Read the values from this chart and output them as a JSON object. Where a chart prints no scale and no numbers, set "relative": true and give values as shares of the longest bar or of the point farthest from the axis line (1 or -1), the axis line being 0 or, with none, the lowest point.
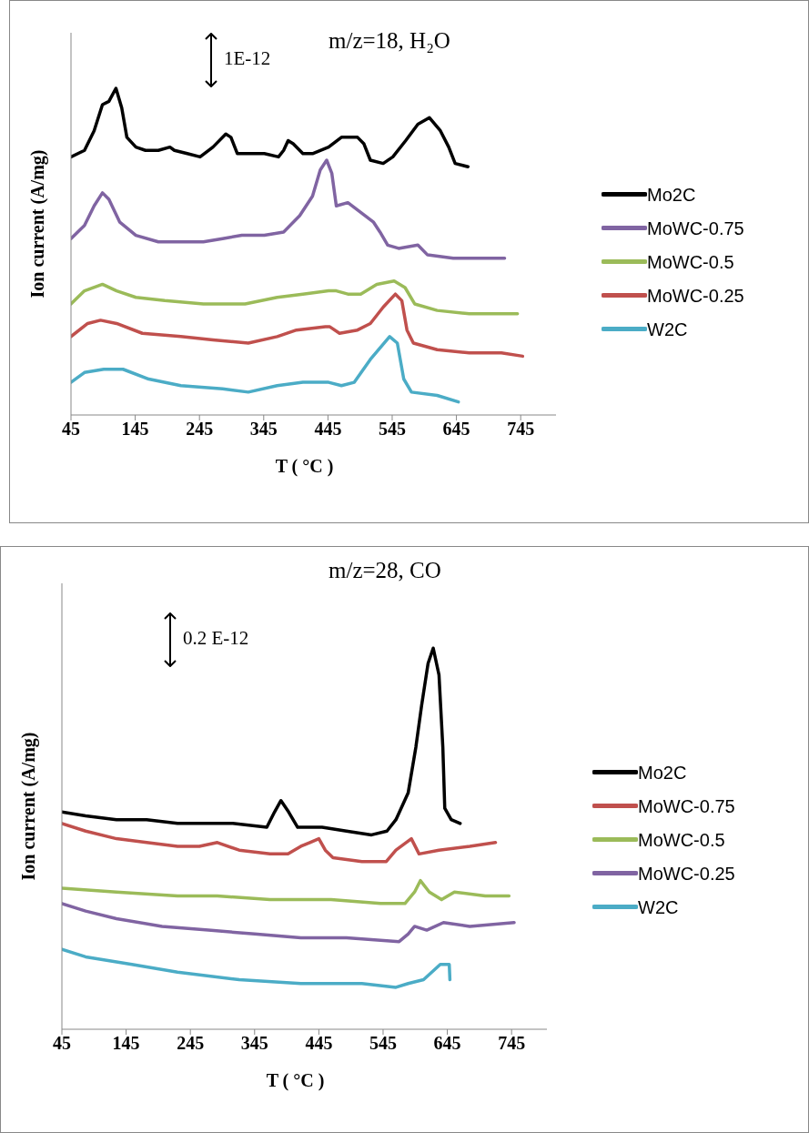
{
  "chart_data": [
    {
      "type": "line",
      "title": "m/z=18, H₂O",
      "xlabel": "T ( °C )",
      "ylabel": "Ion current (A/mg)",
      "relative": true,
      "tick_labels": "x",
      "legend": "right",
      "annotations": [
        "1E-12"
      ],
      "xlim": [
        45,
        800
      ],
      "xticks": [
        45,
        145,
        245,
        345,
        445,
        545,
        645,
        745
      ],
      "series": [
        {
          "name": "Mo2C",
          "color": "#000000",
          "x": [
            45,
            66,
            81,
            94,
            104,
            115,
            124,
            132,
            146,
            161,
            181,
            199,
            206,
            226,
            246,
            266,
            286,
            294,
            304,
            326,
            346,
            368,
            376,
            383,
            391,
            406,
            421,
            446,
            466,
            491,
            501,
            511,
            531,
            546,
            566,
            585,
            603,
            620,
            633,
            643,
            663
          ],
          "values": [
            0.79,
            0.81,
            0.87,
            0.95,
            0.96,
            1.0,
            0.94,
            0.85,
            0.82,
            0.81,
            0.81,
            0.82,
            0.81,
            0.8,
            0.79,
            0.82,
            0.86,
            0.85,
            0.8,
            0.8,
            0.8,
            0.79,
            0.81,
            0.84,
            0.83,
            0.8,
            0.8,
            0.82,
            0.85,
            0.85,
            0.83,
            0.78,
            0.77,
            0.79,
            0.84,
            0.89,
            0.91,
            0.87,
            0.82,
            0.77,
            0.76
          ]
        },
        {
          "name": "MoWC-0.75",
          "color": "#8064a2",
          "x": [
            45,
            66,
            81,
            94,
            104,
            121,
            146,
            181,
            216,
            251,
            281,
            311,
            346,
            376,
            401,
            421,
            433,
            443,
            451,
            458,
            476,
            496,
            516,
            526,
            538,
            555,
            585,
            600,
            640,
            720
          ],
          "values": [
            0.54,
            0.58,
            0.64,
            0.68,
            0.66,
            0.59,
            0.55,
            0.53,
            0.53,
            0.53,
            0.54,
            0.55,
            0.55,
            0.56,
            0.61,
            0.67,
            0.75,
            0.78,
            0.74,
            0.64,
            0.65,
            0.62,
            0.59,
            0.56,
            0.52,
            0.51,
            0.52,
            0.49,
            0.48,
            0.48
          ]
        },
        {
          "name": "MoWC-0.5",
          "color": "#9bbb59",
          "x": [
            45,
            66,
            94,
            116,
            146,
            191,
            251,
            316,
            366,
            406,
            446,
            458,
            476,
            496,
            521,
            548,
            565,
            580,
            615,
            665,
            740
          ],
          "values": [
            0.34,
            0.38,
            0.4,
            0.38,
            0.36,
            0.35,
            0.34,
            0.34,
            0.36,
            0.37,
            0.38,
            0.38,
            0.37,
            0.37,
            0.4,
            0.41,
            0.39,
            0.34,
            0.32,
            0.31,
            0.31
          ]
        },
        {
          "name": "MoWC-0.25",
          "color": "#c0504d",
          "x": [
            45,
            71,
            91,
            116,
            156,
            216,
            266,
            321,
            366,
            396,
            441,
            448,
            463,
            491,
            511,
            531,
            550,
            560,
            568,
            578,
            615,
            665,
            715,
            748
          ],
          "values": [
            0.24,
            0.28,
            0.29,
            0.28,
            0.25,
            0.24,
            0.23,
            0.22,
            0.24,
            0.26,
            0.27,
            0.27,
            0.25,
            0.26,
            0.28,
            0.33,
            0.37,
            0.35,
            0.26,
            0.22,
            0.2,
            0.19,
            0.19,
            0.18
          ]
        },
        {
          "name": "W2C",
          "color": "#4bacc6",
          "x": [
            45,
            66,
            96,
            126,
            166,
            216,
            281,
            321,
            366,
            406,
            446,
            466,
            486,
            511,
            541,
            553,
            563,
            575,
            615,
            648
          ],
          "values": [
            0.1,
            0.13,
            0.14,
            0.14,
            0.11,
            0.09,
            0.08,
            0.07,
            0.09,
            0.1,
            0.1,
            0.09,
            0.1,
            0.17,
            0.24,
            0.22,
            0.11,
            0.07,
            0.06,
            0.04
          ]
        }
      ]
    },
    {
      "type": "line",
      "title": "m/z=28, CO",
      "xlabel": "T ( °C )",
      "ylabel": "Ion current (A/mg)",
      "relative": true,
      "tick_labels": "x",
      "legend": "right",
      "annotations": [
        "0.2 E-12"
      ],
      "xlim": [
        45,
        800
      ],
      "xticks": [
        45,
        145,
        245,
        345,
        445,
        545,
        645,
        745
      ],
      "series": [
        {
          "name": "Mo2C",
          "color": "#000000",
          "x": [
            45,
            82,
            130,
            177,
            225,
            259,
            290,
            311,
            364,
            376,
            386,
            398,
            412,
            450,
            488,
            527,
            551,
            565,
            584,
            596,
            605,
            615,
            623,
            632,
            638,
            641,
            651,
            665
          ],
          "values": [
            0.57,
            0.56,
            0.55,
            0.55,
            0.54,
            0.54,
            0.54,
            0.54,
            0.53,
            0.57,
            0.6,
            0.57,
            0.53,
            0.53,
            0.52,
            0.51,
            0.52,
            0.55,
            0.62,
            0.74,
            0.85,
            0.96,
            1.0,
            0.93,
            0.74,
            0.58,
            0.55,
            0.54
          ]
        },
        {
          "name": "MoWC-0.75",
          "color": "#c0504d",
          "x": [
            45,
            82,
            130,
            177,
            225,
            259,
            287,
            321,
            369,
            397,
            417,
            431,
            445,
            455,
            467,
            512,
            550,
            565,
            589,
            601,
            632,
            680,
            720
          ],
          "values": [
            0.54,
            0.52,
            0.5,
            0.49,
            0.48,
            0.48,
            0.49,
            0.47,
            0.46,
            0.46,
            0.48,
            0.49,
            0.5,
            0.47,
            0.45,
            0.44,
            0.44,
            0.47,
            0.5,
            0.46,
            0.47,
            0.48,
            0.49
          ]
        },
        {
          "name": "MoWC-0.5",
          "color": "#9bbb59",
          "x": [
            45,
            130,
            225,
            287,
            369,
            464,
            541,
            579,
            594,
            603,
            617,
            636,
            656,
            704,
            741
          ],
          "values": [
            0.37,
            0.36,
            0.35,
            0.35,
            0.34,
            0.34,
            0.33,
            0.33,
            0.36,
            0.39,
            0.36,
            0.34,
            0.36,
            0.35,
            0.35
          ]
        },
        {
          "name": "MoWC-0.25",
          "color": "#8064a2",
          "x": [
            45,
            82,
            130,
            201,
            273,
            345,
            417,
            488,
            570,
            584,
            594,
            613,
            639,
            680,
            749
          ],
          "values": [
            0.33,
            0.31,
            0.29,
            0.27,
            0.26,
            0.25,
            0.24,
            0.24,
            0.23,
            0.25,
            0.27,
            0.26,
            0.28,
            0.27,
            0.28
          ]
        },
        {
          "name": "W2C",
          "color": "#4bacc6",
          "x": [
            45,
            82,
            154,
            225,
            321,
            417,
            512,
            565,
            584,
            608,
            634,
            648,
            649
          ],
          "values": [
            0.21,
            0.19,
            0.17,
            0.15,
            0.13,
            0.12,
            0.12,
            0.11,
            0.12,
            0.13,
            0.17,
            0.17,
            0.13
          ]
        }
      ]
    }
  ]
}
